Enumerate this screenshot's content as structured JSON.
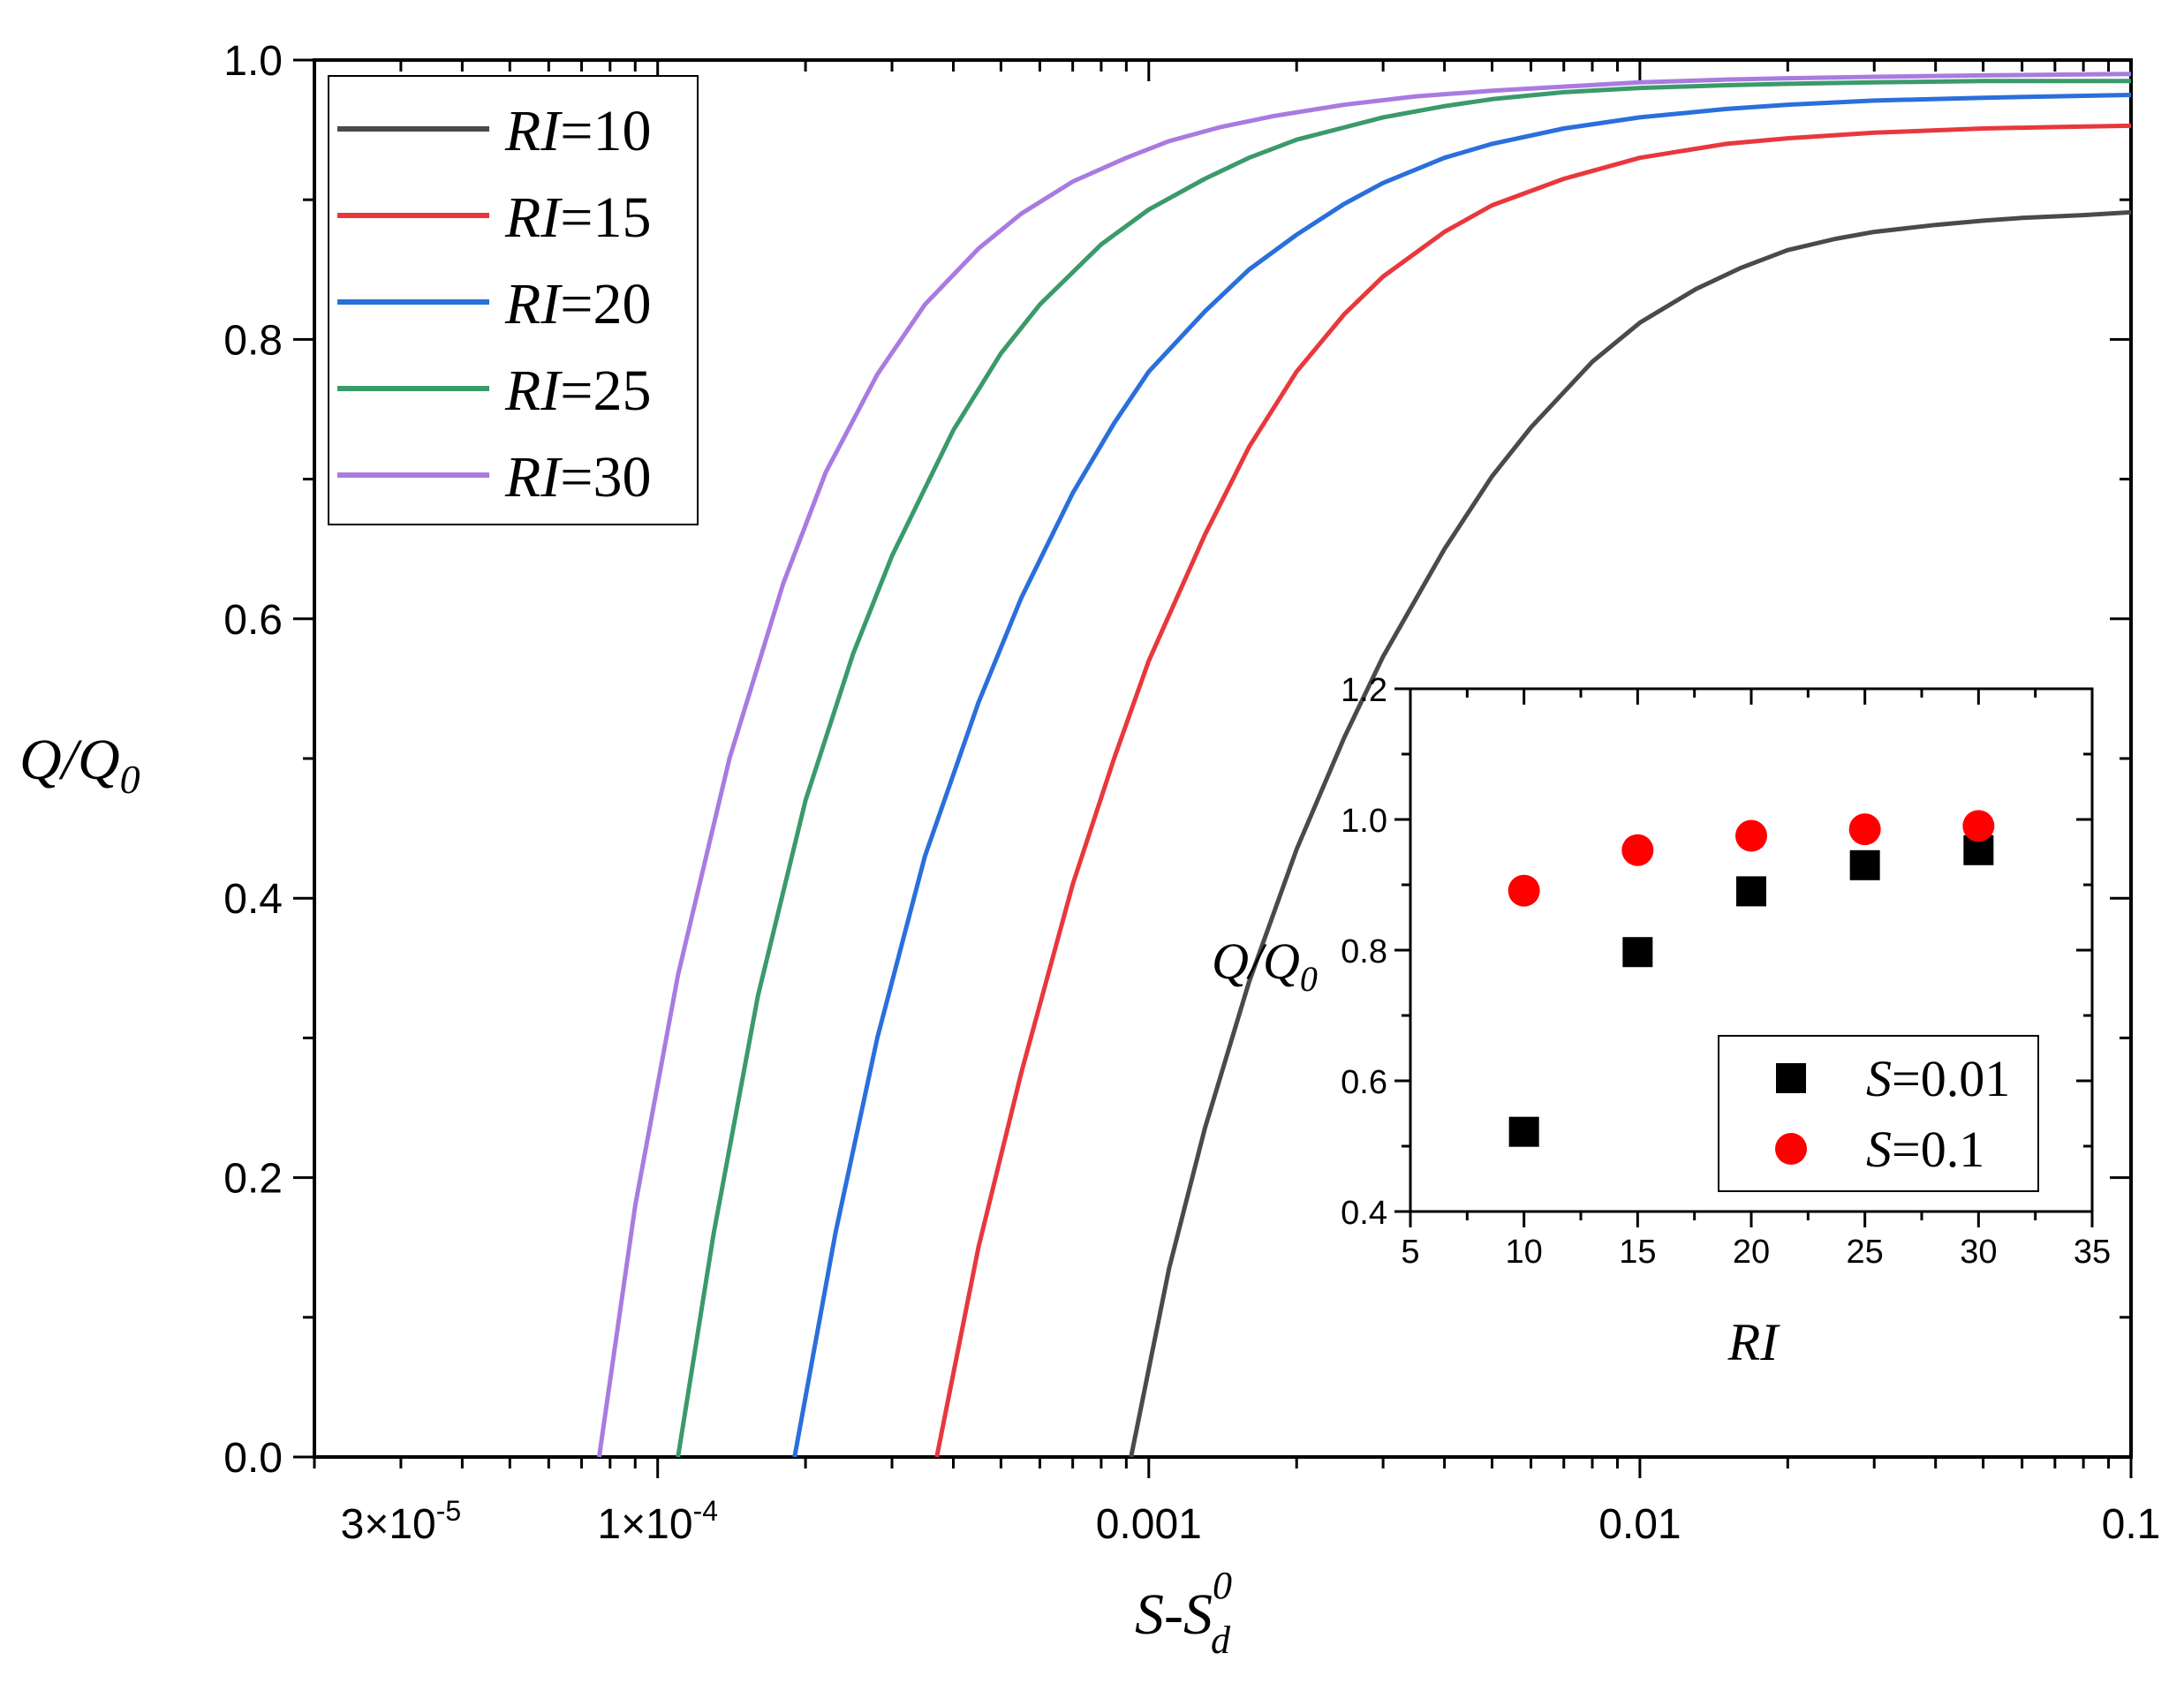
{
  "chart_data": [
    {
      "type": "line",
      "xscale": "log",
      "xlim": [
        2e-05,
        0.1
      ],
      "ylim": [
        0.0,
        1.0
      ],
      "xlabel": {
        "main": "S-S",
        "sup": "0",
        "sub": "d"
      },
      "ylabel": {
        "main": "Q/Q",
        "sub": "0"
      },
      "grid": false,
      "legend_position": "top-left",
      "x_tick_labels": [
        {
          "value": 3e-05,
          "base": "3×10",
          "exp": "-5"
        },
        {
          "value": 0.0001,
          "base": "1×10",
          "exp": "-4"
        },
        {
          "value": 0.001,
          "label": "0.001"
        },
        {
          "value": 0.01,
          "label": "0.01"
        },
        {
          "value": 0.1,
          "label": "0.1"
        }
      ],
      "y_ticks": [
        {
          "value": 0.0,
          "label": "0.0"
        },
        {
          "value": 0.2,
          "label": "0.2"
        },
        {
          "value": 0.4,
          "label": "0.4"
        },
        {
          "value": 0.6,
          "label": "0.6"
        },
        {
          "value": 0.8,
          "label": "0.8"
        },
        {
          "value": 1.0,
          "label": "1.0"
        }
      ],
      "series": [
        {
          "name": "RI=10",
          "name_italic": "RI",
          "name_rest": "=10",
          "color": "#4a4a4a",
          "x": [
            0.00092,
            0.0011,
            0.0013,
            0.0016,
            0.002,
            0.0025,
            0.003,
            0.004,
            0.005,
            0.006,
            0.008,
            0.01,
            0.013,
            0.016,
            0.02,
            0.025,
            0.03,
            0.04,
            0.05,
            0.06,
            0.08,
            0.1
          ],
          "y": [
            0.0,
            0.135,
            0.235,
            0.34,
            0.435,
            0.515,
            0.573,
            0.65,
            0.702,
            0.737,
            0.784,
            0.812,
            0.836,
            0.851,
            0.864,
            0.872,
            0.877,
            0.882,
            0.885,
            0.887,
            0.889,
            0.891
          ]
        },
        {
          "name": "RI=15",
          "name_italic": "RI",
          "name_rest": "=15",
          "color": "#e8383d",
          "x": [
            0.00037,
            0.00045,
            0.00055,
            0.0007,
            0.00085,
            0.001,
            0.0013,
            0.0016,
            0.002,
            0.0025,
            0.003,
            0.004,
            0.005,
            0.007,
            0.01,
            0.015,
            0.02,
            0.03,
            0.05,
            0.07,
            0.1
          ],
          "y": [
            0.0,
            0.15,
            0.275,
            0.41,
            0.5,
            0.57,
            0.66,
            0.723,
            0.777,
            0.818,
            0.845,
            0.877,
            0.896,
            0.915,
            0.93,
            0.94,
            0.944,
            0.948,
            0.951,
            0.952,
            0.953
          ]
        },
        {
          "name": "RI=20",
          "name_italic": "RI",
          "name_rest": "=20",
          "color": "#2a6fdb",
          "x": [
            0.00019,
            0.00023,
            0.00028,
            0.00035,
            0.00045,
            0.00055,
            0.0007,
            0.00085,
            0.001,
            0.0013,
            0.0016,
            0.002,
            0.0025,
            0.003,
            0.004,
            0.005,
            0.007,
            0.01,
            0.015,
            0.02,
            0.03,
            0.05,
            0.07,
            0.1
          ],
          "y": [
            0.0,
            0.16,
            0.3,
            0.43,
            0.54,
            0.615,
            0.69,
            0.74,
            0.777,
            0.82,
            0.85,
            0.875,
            0.897,
            0.912,
            0.93,
            0.94,
            0.951,
            0.959,
            0.965,
            0.968,
            0.971,
            0.973,
            0.974,
            0.975
          ]
        },
        {
          "name": "RI=25",
          "name_italic": "RI",
          "name_rest": "=25",
          "color": "#3a9a6a",
          "x": [
            0.00011,
            0.00013,
            0.00016,
            0.0002,
            0.00025,
            0.0003,
            0.0004,
            0.0005,
            0.0006,
            0.0008,
            0.001,
            0.0013,
            0.0016,
            0.002,
            0.003,
            0.004,
            0.005,
            0.007,
            0.01,
            0.015,
            0.02,
            0.03,
            0.05,
            0.1
          ],
          "y": [
            0.0,
            0.16,
            0.33,
            0.47,
            0.575,
            0.645,
            0.735,
            0.79,
            0.825,
            0.868,
            0.893,
            0.915,
            0.93,
            0.943,
            0.959,
            0.967,
            0.972,
            0.977,
            0.98,
            0.982,
            0.983,
            0.984,
            0.985,
            0.985
          ]
        },
        {
          "name": "RI=30",
          "name_italic": "RI",
          "name_rest": "=30",
          "color": "#a97be0",
          "x": [
            7.6e-05,
            9e-05,
            0.00011,
            0.00014,
            0.00018,
            0.00022,
            0.00028,
            0.00035,
            0.00045,
            0.00055,
            0.0007,
            0.0009,
            0.0011,
            0.0014,
            0.0018,
            0.0025,
            0.0035,
            0.005,
            0.007,
            0.01,
            0.015,
            0.02,
            0.03,
            0.05,
            0.1
          ],
          "y": [
            0.0,
            0.18,
            0.345,
            0.5,
            0.625,
            0.705,
            0.775,
            0.825,
            0.865,
            0.89,
            0.913,
            0.93,
            0.942,
            0.952,
            0.96,
            0.968,
            0.974,
            0.978,
            0.981,
            0.984,
            0.986,
            0.987,
            0.988,
            0.989,
            0.99
          ]
        }
      ]
    },
    {
      "type": "scatter",
      "xlabel": "RI",
      "ylabel": {
        "main": "Q/Q",
        "sub": "0"
      },
      "xlim": [
        5,
        35
      ],
      "ylim": [
        0.4,
        1.2
      ],
      "legend_position": "bottom-right",
      "x_ticks": [
        {
          "value": 5,
          "label": "5"
        },
        {
          "value": 10,
          "label": "10"
        },
        {
          "value": 15,
          "label": "15"
        },
        {
          "value": 20,
          "label": "20"
        },
        {
          "value": 25,
          "label": "25"
        },
        {
          "value": 30,
          "label": "30"
        },
        {
          "value": 35,
          "label": "35"
        }
      ],
      "y_ticks": [
        {
          "value": 0.4,
          "label": "0.4"
        },
        {
          "value": 0.6,
          "label": "0.6"
        },
        {
          "value": 0.8,
          "label": "0.8"
        },
        {
          "value": 1.0,
          "label": "1.0"
        },
        {
          "value": 1.2,
          "label": "1.2"
        }
      ],
      "series": [
        {
          "name": "S=0.01",
          "name_italic": "S",
          "name_rest": "=0.01",
          "marker": "square",
          "color": "#000000",
          "x": [
            10,
            15,
            20,
            25,
            30
          ],
          "y": [
            0.522,
            0.797,
            0.89,
            0.93,
            0.953
          ]
        },
        {
          "name": "S=0.1",
          "name_italic": "S",
          "name_rest": "=0.1",
          "marker": "circle",
          "color": "#ff0000",
          "x": [
            10,
            15,
            20,
            25,
            30
          ],
          "y": [
            0.891,
            0.953,
            0.975,
            0.985,
            0.99
          ]
        }
      ]
    }
  ]
}
